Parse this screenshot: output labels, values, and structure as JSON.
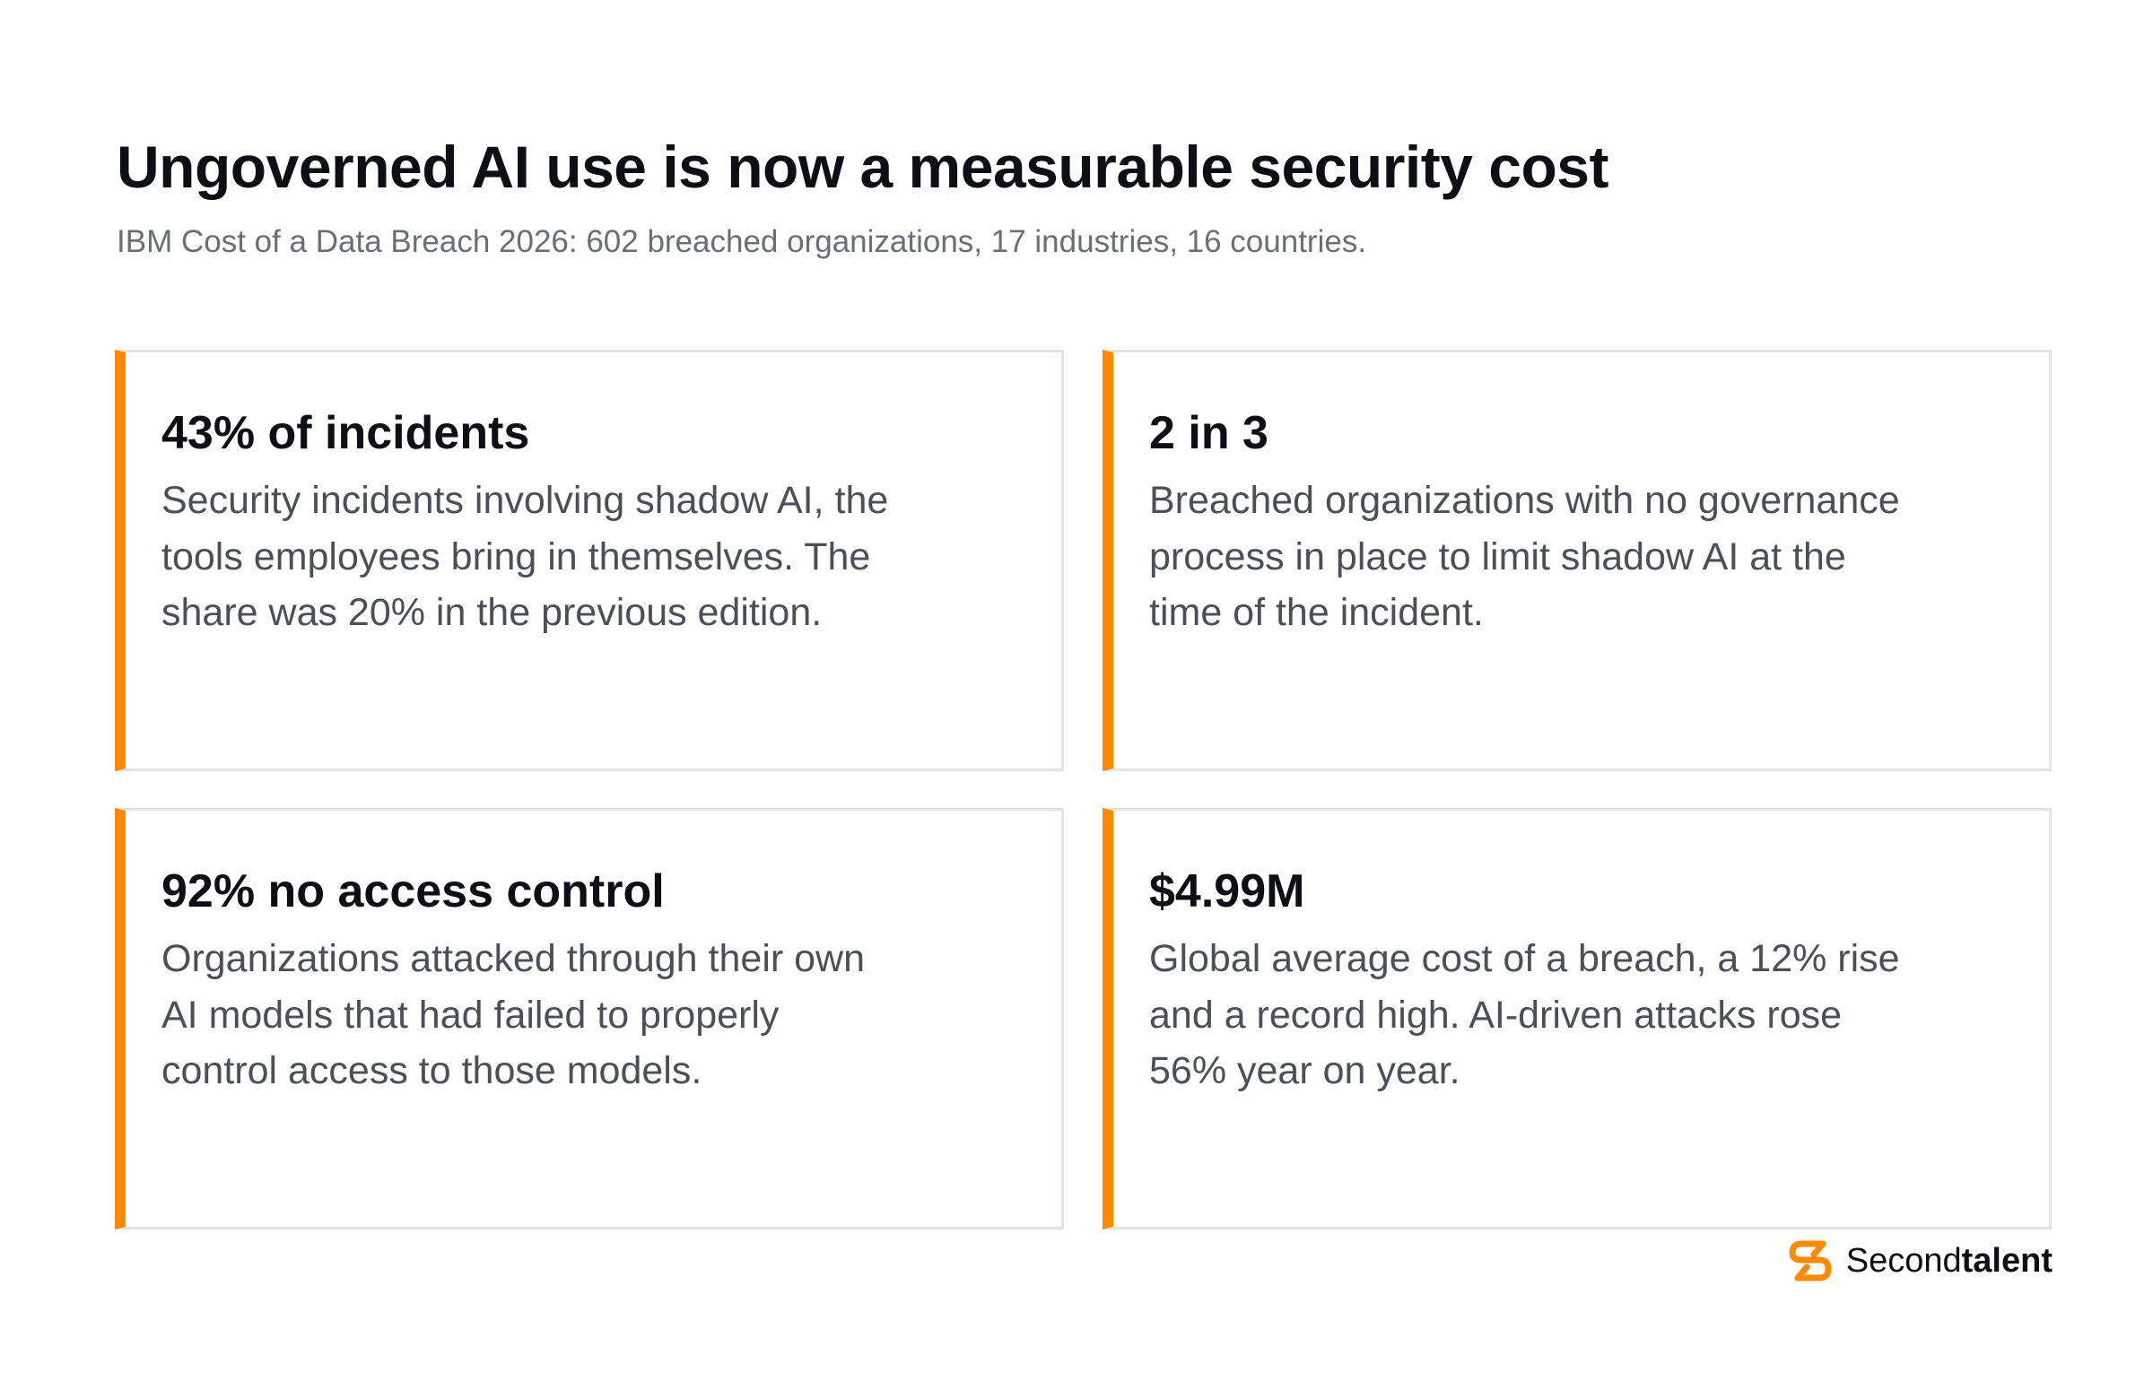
{
  "header": {
    "title": "Ungoverned AI use is now a measurable security cost",
    "subtitle": "IBM Cost of a Data Breach 2026: 602 breached organizations, 17 industries, 16 countries."
  },
  "cards": [
    {
      "stat": "43% of incidents",
      "description": "Security incidents involving shadow AI, the tools employees bring in themselves. The share was 20% in the previous edition."
    },
    {
      "stat": "2 in 3",
      "description": "Breached organizations with no governance process in place to limit shadow AI at the time of the incident."
    },
    {
      "stat": "92% no access control",
      "description": "Organizations attacked through their own AI models that had failed to properly control access to those models."
    },
    {
      "stat": "$4.99M",
      "description": "Global average cost of a breach, a 12% rise and a record high. AI-driven attacks rose 56% year on year."
    }
  ],
  "brand": {
    "name_regular": "Second",
    "name_bold": "talent",
    "logo_icon": "secondtalent-s-logo-icon"
  },
  "colors": {
    "accent": "#ff8a00",
    "title": "#0d0f14",
    "subtitle": "#6b6e75",
    "body_text": "#4c4f56",
    "card_border": "#e3e3e3"
  }
}
